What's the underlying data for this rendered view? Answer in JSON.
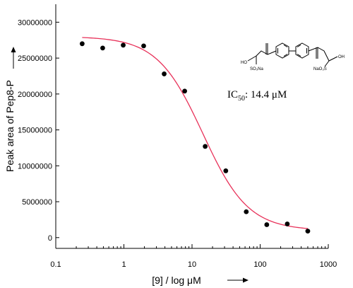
{
  "chart_data": {
    "type": "scatter",
    "title": "",
    "xlabel": "[9] / log μM",
    "ylabel": "Peak area of Pep8-P",
    "xscale": "log",
    "xlim": [
      0.1,
      1000
    ],
    "ylim": [
      -1500000,
      32500000
    ],
    "x_ticks": [
      0.1,
      1,
      10,
      100,
      1000
    ],
    "x_tick_labels": [
      "0.1",
      "1",
      "10",
      "100",
      "1000"
    ],
    "y_ticks": [
      0,
      5000000,
      10000000,
      15000000,
      20000000,
      25000000,
      30000000
    ],
    "y_tick_labels": [
      "0",
      "5000000",
      "10000000",
      "15000000",
      "20000000",
      "25000000",
      "30000000"
    ],
    "grid": false,
    "series": [
      {
        "type": "scatter",
        "color": "#000000",
        "x": [
          0.244,
          0.488,
          0.977,
          1.95,
          3.9,
          7.8,
          15.6,
          31.3,
          62.5,
          125,
          250,
          500
        ],
        "y": [
          27000000,
          26400000,
          26800000,
          26700000,
          22800000,
          20400000,
          12700000,
          9300000,
          3600000,
          1800000,
          1900000,
          900000
        ]
      },
      {
        "type": "line",
        "color": "#e8325a",
        "fit": "logistic",
        "top": 28000000,
        "bottom": 1000000,
        "ic50": 14.4,
        "hill": 1.3,
        "x_range": [
          0.244,
          500
        ]
      }
    ],
    "annotation": {
      "ic50_prefix": "IC",
      "ic50_sub": "50",
      "ic50_value": ": 14.4 μM"
    },
    "structure_labels": {
      "ho_left": "HO",
      "so3na": "SO₃Na",
      "nao3s": "NaO₃S",
      "oh_right": "OH"
    }
  }
}
